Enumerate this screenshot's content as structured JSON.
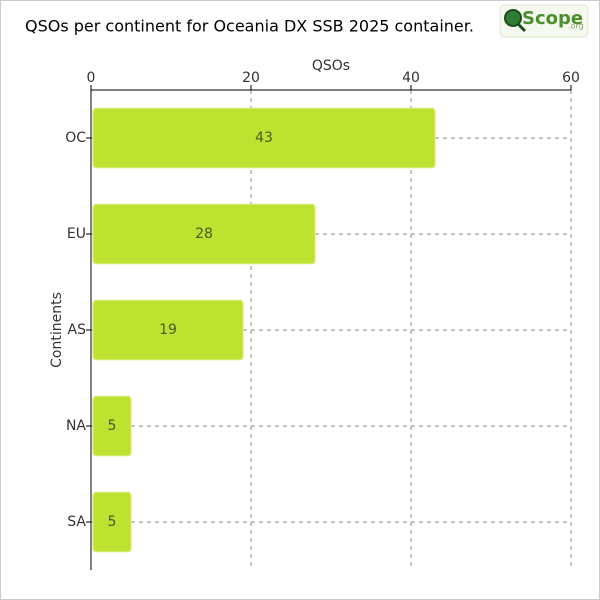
{
  "logo": {
    "text": "Scope",
    "suffix": ".org"
  },
  "chart_data": {
    "type": "bar",
    "orientation": "horizontal",
    "title": "QSOs per continent for Oceania DX SSB 2025 container.",
    "x_label": "QSOs",
    "y_label": "Continents",
    "categories": [
      "OC",
      "EU",
      "AS",
      "NA",
      "SA"
    ],
    "values": [
      43,
      28,
      19,
      5,
      5
    ],
    "color": "#bde22f",
    "xlim": [
      0,
      60
    ],
    "xticks": [
      0,
      20,
      40,
      60
    ],
    "grid": true
  }
}
